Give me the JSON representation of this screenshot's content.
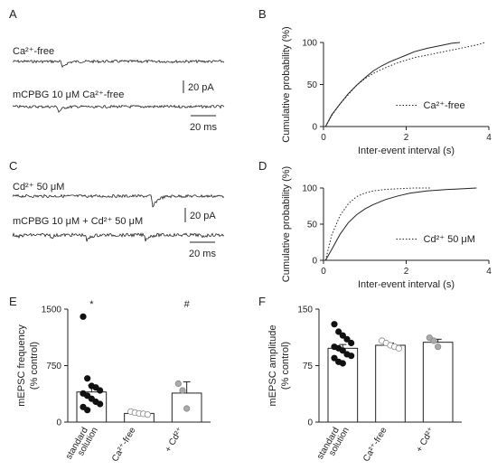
{
  "panels": {
    "A": {
      "letter": "A",
      "trace1_label": "Ca²⁺-free",
      "trace2_label": "mCPBG 10 μM Ca²⁺-free",
      "scale_pa": "20 pA",
      "scale_ms": "20 ms"
    },
    "C": {
      "letter": "C",
      "trace1_label": "Cd²⁺ 50 μM",
      "trace2_label": "mCPBG 10 μM + Cd²⁺ 50 μM",
      "scale_pa": "20 pA",
      "scale_ms": "20 ms"
    },
    "B": {
      "letter": "B"
    },
    "D": {
      "letter": "D"
    },
    "E": {
      "letter": "E"
    },
    "F": {
      "letter": "F"
    }
  },
  "chart_data": [
    {
      "id": "B",
      "type": "line",
      "xlabel": "Inter-event interval (s)",
      "ylabel": "Cumulative probability (%)",
      "xlim": [
        0,
        4
      ],
      "ylim": [
        0,
        100
      ],
      "xticks": [
        "0",
        "2",
        "4"
      ],
      "yticks": [
        "0",
        "50",
        "100"
      ],
      "legend": "bottom-right",
      "series": [
        {
          "style": "solid",
          "x": [
            0.05,
            0.2,
            0.4,
            0.6,
            0.8,
            1.0,
            1.2,
            1.4,
            1.6,
            1.8,
            2.0,
            2.2,
            2.5,
            2.8,
            3.1,
            3.3
          ],
          "y": [
            0,
            14,
            27,
            39,
            49,
            58,
            66,
            72,
            77,
            81,
            85,
            89,
            93,
            96,
            99,
            100
          ]
        },
        {
          "name": "Ca²⁺-free",
          "style": "dotted",
          "x": [
            0.05,
            0.2,
            0.4,
            0.6,
            0.8,
            1.0,
            1.2,
            1.4,
            1.6,
            1.8,
            2.0,
            2.2,
            2.5,
            2.8,
            3.1,
            3.4,
            3.7,
            3.9
          ],
          "y": [
            0,
            13,
            27,
            38,
            49,
            57,
            63,
            68,
            72,
            76,
            79,
            82,
            85,
            88,
            91,
            94,
            97,
            100
          ]
        }
      ]
    },
    {
      "id": "D",
      "type": "line",
      "xlabel": "Inter-event interval (s)",
      "ylabel": "Cumulative probability (%)",
      "xlim": [
        0,
        4
      ],
      "ylim": [
        0,
        100
      ],
      "xticks": [
        "0",
        "2",
        "4"
      ],
      "yticks": [
        "0",
        "50",
        "100"
      ],
      "legend": "bottom-right",
      "series": [
        {
          "style": "solid",
          "x": [
            0.05,
            0.2,
            0.4,
            0.6,
            0.8,
            1.0,
            1.2,
            1.5,
            1.8,
            2.1,
            2.5,
            3.0,
            3.4,
            3.7
          ],
          "y": [
            0,
            15,
            36,
            52,
            63,
            71,
            77,
            84,
            89,
            93,
            96,
            98,
            99,
            100
          ]
        },
        {
          "name": "Cd²⁺ 50 μM",
          "style": "dotted",
          "x": [
            0.05,
            0.2,
            0.4,
            0.6,
            0.8,
            1.0,
            1.2,
            1.5,
            1.8,
            2.2,
            2.6
          ],
          "y": [
            0,
            35,
            62,
            78,
            88,
            93,
            96,
            98,
            99,
            100,
            100
          ]
        }
      ]
    },
    {
      "id": "E",
      "type": "bar",
      "ylabel": "mEPSC frequency\n(% control)",
      "ylim": [
        0,
        1500
      ],
      "yticks": [
        "0",
        "750",
        "1500"
      ],
      "categories": [
        "standard\nsolution",
        "Ca²⁺-free",
        "+ Cd²⁺"
      ],
      "values": [
        400,
        115,
        385
      ],
      "errors": [
        90,
        10,
        150
      ],
      "annotations": [
        "*",
        "",
        "#"
      ],
      "points": [
        [
          1400,
          580,
          480,
          460,
          420,
          380,
          350,
          310,
          270,
          240,
          200,
          160
        ],
        [
          140,
          125,
          115,
          110,
          100
        ],
        [
          510,
          420,
          180
        ]
      ]
    },
    {
      "id": "F",
      "type": "bar",
      "ylabel": "mEPSC amplitude\n(% control)",
      "ylim": [
        0,
        150
      ],
      "yticks": [
        "0",
        "75",
        "150"
      ],
      "categories": [
        "standard\nsolution",
        "Ca²⁺-free",
        "+ Cd²⁺"
      ],
      "values": [
        98,
        102,
        106
      ],
      "errors": [
        5,
        3,
        4
      ],
      "points": [
        [
          130,
          120,
          115,
          110,
          105,
          100,
          98,
          95,
          90,
          88,
          85,
          80,
          78
        ],
        [
          108,
          105,
          102,
          100,
          98
        ],
        [
          112,
          108,
          100
        ]
      ]
    }
  ]
}
